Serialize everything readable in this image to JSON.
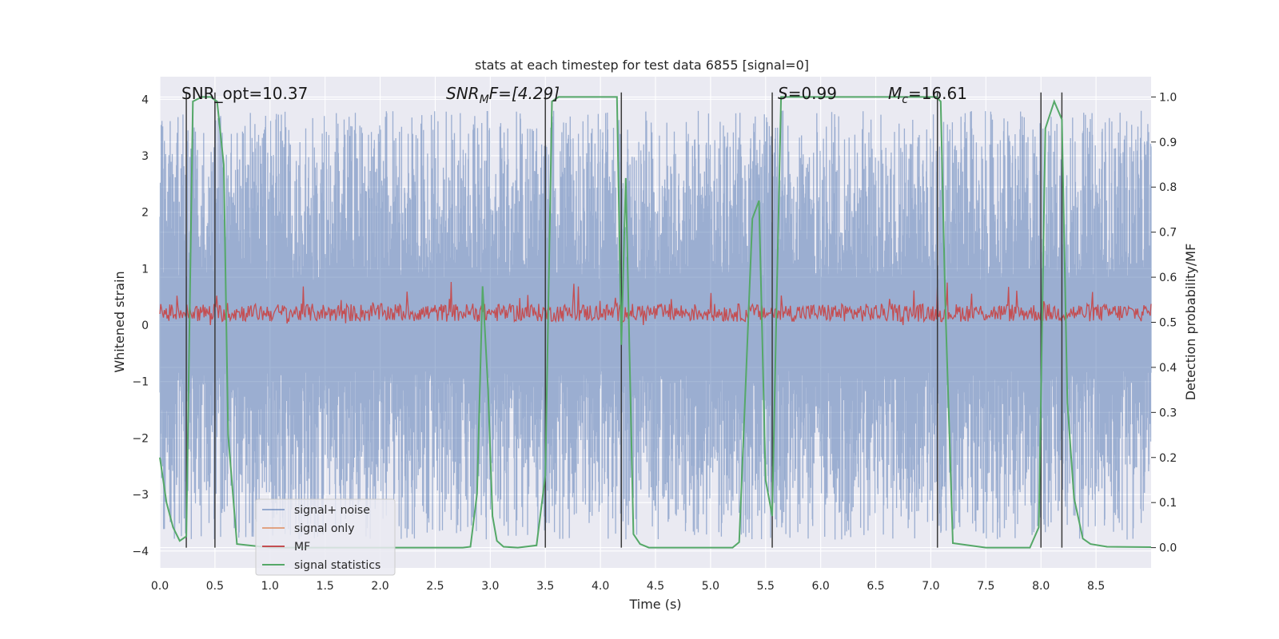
{
  "chart_data": {
    "type": "line",
    "title": "stats at each timestep for test data 6855 [signal=0]",
    "xlabel": "Time (s)",
    "ylabel": "Whitened strain",
    "y2label": "Detection probability/MF",
    "xlim": [
      0.0,
      9.0
    ],
    "ylim": [
      -4.3,
      4.4
    ],
    "y2lim": [
      -0.045,
      1.045
    ],
    "xticks": [
      "0.0",
      "0.5",
      "1.0",
      "1.5",
      "2.0",
      "2.5",
      "3.0",
      "3.5",
      "4.0",
      "4.5",
      "5.0",
      "5.5",
      "6.0",
      "6.5",
      "7.0",
      "7.5",
      "8.0",
      "8.5"
    ],
    "yticks": [
      "4",
      "3",
      "2",
      "1",
      "0",
      "−1",
      "−2",
      "−3",
      "−4"
    ],
    "y2ticks": [
      "1.0",
      "0.9",
      "0.8",
      "0.7",
      "0.6",
      "0.5",
      "0.4",
      "0.3",
      "0.2",
      "0.1",
      "0.0"
    ],
    "grid": true,
    "legend_position": "lower-left",
    "legend": [
      "signal+ noise",
      "signal only",
      "MF",
      "signal statistics"
    ],
    "annotations": {
      "snr_opt": "SNR_opt=10.37",
      "snr_mf_main": "SNR",
      "snr_mf_sub": "M",
      "snr_mf_tail": "F=[4.29]",
      "s_main": "S",
      "s_tail": "=0.99",
      "mc_main": "M",
      "mc_sub": "c",
      "mc_tail": "=16.61"
    },
    "vertical_lines_x": [
      0.24,
      0.5,
      3.5,
      4.19,
      5.56,
      7.06,
      8.0,
      8.19
    ],
    "signal_statistics": {
      "x": [
        0.0,
        0.06,
        0.12,
        0.18,
        0.24,
        0.3,
        0.38,
        0.46,
        0.52,
        0.58,
        0.62,
        0.7,
        1.0,
        1.5,
        2.0,
        2.5,
        2.75,
        2.82,
        2.88,
        2.93,
        2.98,
        3.02,
        3.06,
        3.12,
        3.25,
        3.42,
        3.5,
        3.56,
        3.62,
        3.7,
        4.0,
        4.15,
        4.19,
        4.23,
        4.3,
        4.36,
        4.44,
        4.6,
        5.0,
        5.2,
        5.26,
        5.32,
        5.38,
        5.44,
        5.5,
        5.56,
        5.6,
        5.64,
        5.8,
        6.5,
        7.0,
        7.05,
        7.09,
        7.13,
        7.2,
        7.5,
        7.9,
        7.98,
        8.04,
        8.12,
        8.19,
        8.24,
        8.3,
        8.38,
        8.45,
        8.6,
        9.0
      ],
      "y": [
        0.2,
        0.1,
        0.045,
        0.015,
        0.025,
        0.99,
        1.0,
        1.0,
        0.99,
        0.85,
        0.25,
        0.008,
        0.0,
        0.0,
        0.0,
        0.0,
        0.0,
        0.002,
        0.12,
        0.58,
        0.35,
        0.07,
        0.015,
        0.002,
        0.0,
        0.005,
        0.16,
        0.99,
        1.0,
        1.0,
        1.0,
        1.0,
        0.45,
        0.82,
        0.03,
        0.008,
        0.0,
        0.0,
        0.0,
        0.0,
        0.012,
        0.37,
        0.73,
        0.77,
        0.15,
        0.07,
        0.55,
        1.0,
        1.0,
        1.0,
        1.0,
        1.0,
        0.99,
        0.55,
        0.01,
        0.0,
        0.0,
        0.045,
        0.93,
        0.99,
        0.95,
        0.32,
        0.11,
        0.02,
        0.008,
        0.002,
        0.001
      ]
    },
    "strain_series": {
      "name": "signal+ noise",
      "points": 2400,
      "envelope_max": 3.8,
      "envelope_min": -3.8,
      "color": "#4c72b0"
    },
    "mf_series": {
      "name": "MF",
      "points": 1100,
      "center": 0.22,
      "min": 0.0,
      "max": 0.95,
      "color": "#c44e52"
    },
    "colors": {
      "background": "#eaeaf2",
      "grid": "#ffffff",
      "signal_noise": "#4c72b0",
      "signal_only": "#dd8452",
      "mf": "#c44e52",
      "statistics": "#55a868",
      "vline": "#3a3a3a"
    }
  }
}
